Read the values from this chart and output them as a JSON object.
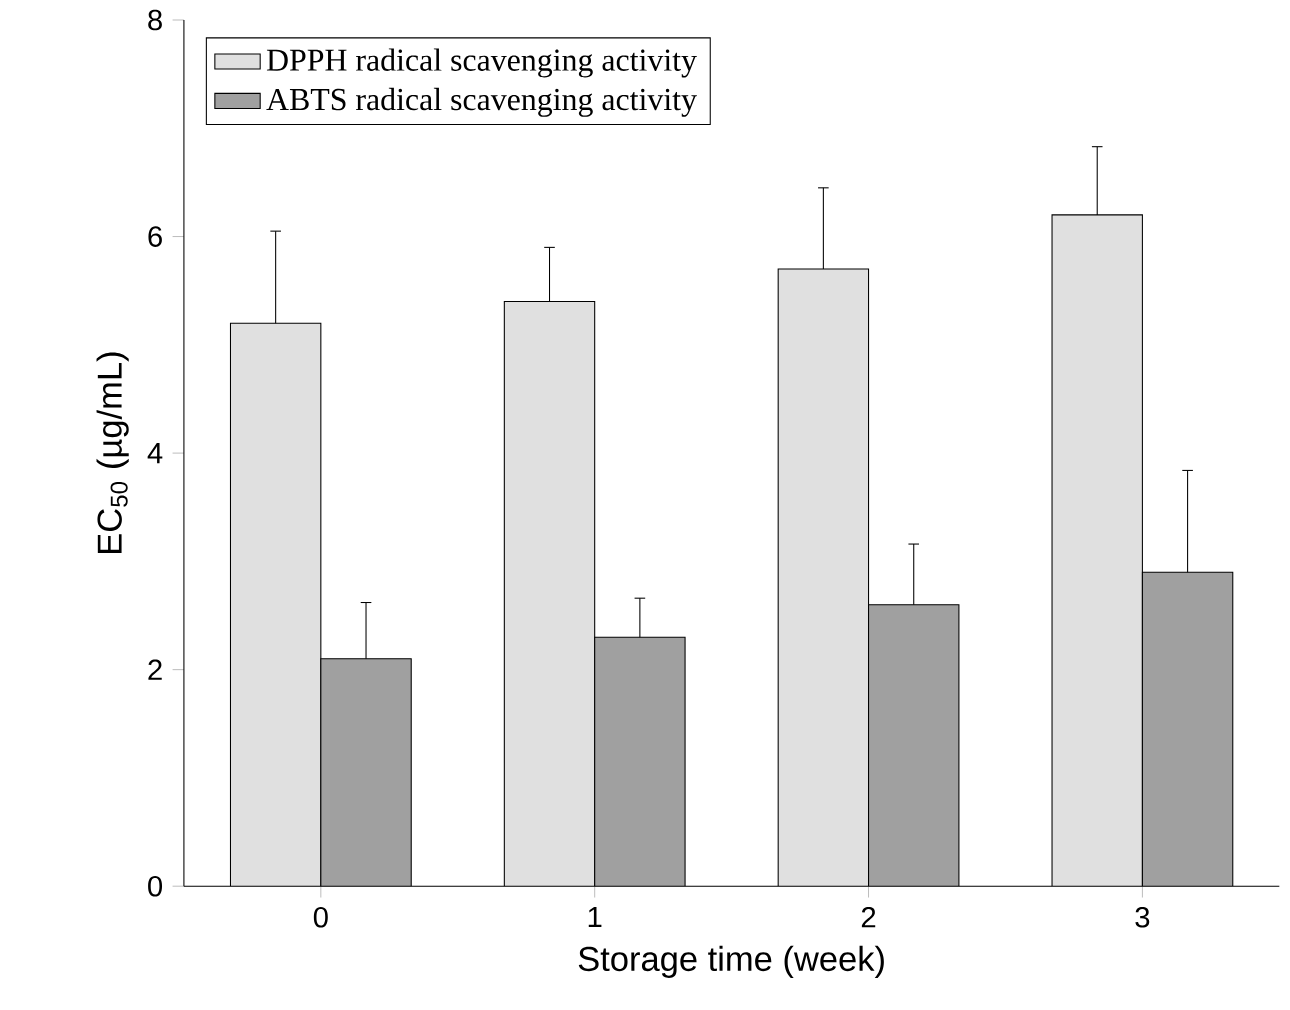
{
  "chart_data": {
    "type": "bar",
    "xlabel": "Storage time (week)",
    "ylabel": "EC$_{50}$ (µg/mL)",
    "categories": [
      "0",
      "1",
      "2",
      "3"
    ],
    "series": [
      {
        "name": "DPPH radical scavenging activity",
        "color": "#e0e0e0",
        "values": [
          5.2,
          5.4,
          5.7,
          6.2
        ],
        "errors": [
          0.85,
          0.5,
          0.75,
          0.63
        ]
      },
      {
        "name": "ABTS radical scavenging activity",
        "color": "#a0a0a0",
        "values": [
          2.1,
          2.3,
          2.6,
          2.9
        ],
        "errors": [
          0.52,
          0.36,
          0.56,
          0.94
        ]
      }
    ],
    "ylim": [
      0,
      8
    ],
    "yticks": [
      0,
      2,
      4,
      6,
      8
    ],
    "legend": "top left"
  }
}
